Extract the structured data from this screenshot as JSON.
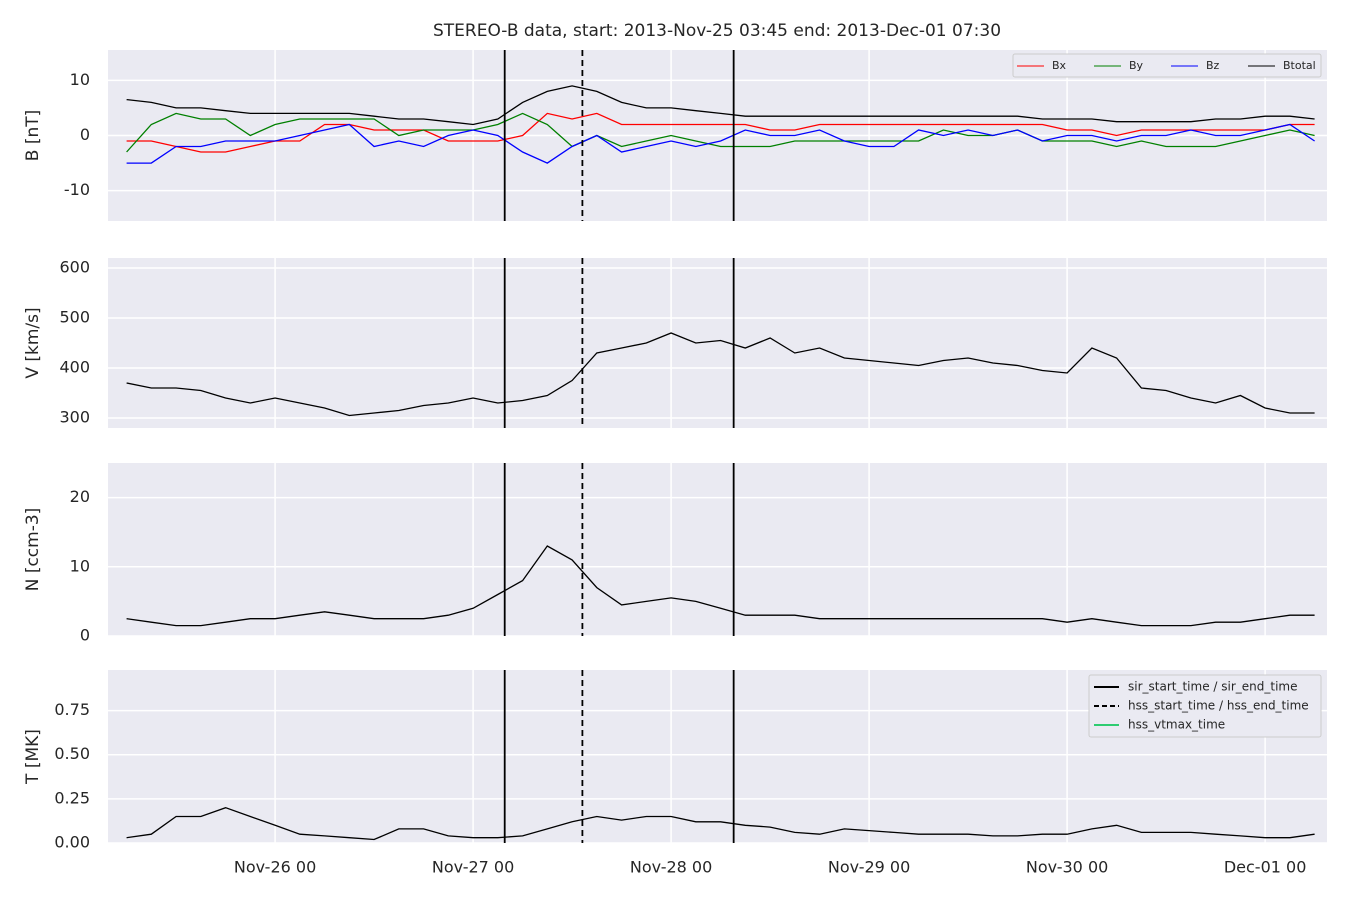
{
  "chart_data": {
    "type": "line",
    "title": "STEREO-B data, start: 2013-Nov-25 03:45  end: 2013-Dec-01 07:30",
    "xlim": [
      "2013-11-25 03:45",
      "2013-12-01 07:30"
    ],
    "xticks": [
      {
        "value": "2013-11-26 00:00",
        "label": "Nov-26 00"
      },
      {
        "value": "2013-11-27 00:00",
        "label": "Nov-27 00"
      },
      {
        "value": "2013-11-28 00:00",
        "label": "Nov-28 00"
      },
      {
        "value": "2013-11-29 00:00",
        "label": "Nov-29 00"
      },
      {
        "value": "2013-11-30 00:00",
        "label": "Nov-30 00"
      },
      {
        "value": "2013-12-01 00:00",
        "label": "Dec-01 00"
      }
    ],
    "grid": true,
    "x": [
      "2013-11-25 06:00",
      "2013-11-25 09:00",
      "2013-11-25 12:00",
      "2013-11-25 15:00",
      "2013-11-25 18:00",
      "2013-11-25 21:00",
      "2013-11-26 00:00",
      "2013-11-26 03:00",
      "2013-11-26 06:00",
      "2013-11-26 09:00",
      "2013-11-26 12:00",
      "2013-11-26 15:00",
      "2013-11-26 18:00",
      "2013-11-26 21:00",
      "2013-11-27 00:00",
      "2013-11-27 03:00",
      "2013-11-27 06:00",
      "2013-11-27 09:00",
      "2013-11-27 12:00",
      "2013-11-27 15:00",
      "2013-11-27 18:00",
      "2013-11-27 21:00",
      "2013-11-28 00:00",
      "2013-11-28 03:00",
      "2013-11-28 06:00",
      "2013-11-28 09:00",
      "2013-11-28 12:00",
      "2013-11-28 15:00",
      "2013-11-28 18:00",
      "2013-11-28 21:00",
      "2013-11-29 00:00",
      "2013-11-29 03:00",
      "2013-11-29 06:00",
      "2013-11-29 09:00",
      "2013-11-29 12:00",
      "2013-11-29 15:00",
      "2013-11-29 18:00",
      "2013-11-29 21:00",
      "2013-11-30 00:00",
      "2013-11-30 03:00",
      "2013-11-30 06:00",
      "2013-11-30 09:00",
      "2013-11-30 12:00",
      "2013-11-30 15:00",
      "2013-11-30 18:00",
      "2013-11-30 21:00",
      "2013-12-01 00:00",
      "2013-12-01 03:00",
      "2013-12-01 06:00"
    ],
    "panels": [
      {
        "ylabel": "B [nT]",
        "ylim": [
          -15.5,
          15.5
        ],
        "yticks": [
          -10,
          0,
          10
        ],
        "legend": "upper right",
        "series": [
          {
            "name": "Bx",
            "color": "#ff0000",
            "values": [
              -1,
              -1,
              -2,
              -3,
              -3,
              -2,
              -1,
              -1,
              2,
              2,
              1,
              1,
              1,
              -1,
              -1,
              -1,
              0,
              4,
              3,
              4,
              2,
              2,
              2,
              2,
              2,
              2,
              1,
              1,
              2,
              2,
              2,
              2,
              2,
              2,
              2,
              2,
              2,
              2,
              1,
              1,
              0,
              1,
              1,
              1,
              1,
              1,
              1,
              2,
              2
            ]
          },
          {
            "name": "By",
            "color": "#008000",
            "values": [
              -3,
              2,
              4,
              3,
              3,
              0,
              2,
              3,
              3,
              3,
              3,
              0,
              1,
              1,
              1,
              2,
              4,
              2,
              -2,
              0,
              -2,
              -1,
              0,
              -1,
              -2,
              -2,
              -2,
              -1,
              -1,
              -1,
              -1,
              -1,
              -1,
              1,
              0,
              0,
              1,
              -1,
              -1,
              -1,
              -2,
              -1,
              -2,
              -2,
              -2,
              -1,
              0,
              1,
              0
            ]
          },
          {
            "name": "Bz",
            "color": "#0000ff",
            "values": [
              -5,
              -5,
              -2,
              -2,
              -1,
              -1,
              -1,
              0,
              1,
              2,
              -2,
              -1,
              -2,
              0,
              1,
              0,
              -3,
              -5,
              -2,
              0,
              -3,
              -2,
              -1,
              -2,
              -1,
              1,
              0,
              0,
              1,
              -1,
              -2,
              -2,
              1,
              0,
              1,
              0,
              1,
              -1,
              0,
              0,
              -1,
              0,
              0,
              1,
              0,
              0,
              1,
              2,
              -1
            ]
          },
          {
            "name": "Btotal",
            "color": "#000000",
            "values": [
              6.5,
              6,
              5,
              5,
              4.5,
              4,
              4,
              4,
              4,
              4,
              3.5,
              3,
              3,
              2.5,
              2,
              3,
              6,
              8,
              9,
              8,
              6,
              5,
              5,
              4.5,
              4,
              3.5,
              3.5,
              3.5,
              3.5,
              3.5,
              3.5,
              3.5,
              3.5,
              3.5,
              3.5,
              3.5,
              3.5,
              3,
              3,
              3,
              2.5,
              2.5,
              2.5,
              2.5,
              3,
              3,
              3.5,
              3.5,
              3
            ]
          }
        ]
      },
      {
        "ylabel": "V [km/s]",
        "ylim": [
          280,
          620
        ],
        "yticks": [
          300,
          400,
          500,
          600
        ],
        "series": [
          {
            "color": "#000000",
            "values": [
              370,
              360,
              360,
              355,
              340,
              330,
              340,
              330,
              320,
              305,
              310,
              315,
              325,
              330,
              340,
              330,
              335,
              345,
              375,
              430,
              440,
              450,
              470,
              450,
              455,
              440,
              460,
              430,
              440,
              420,
              415,
              410,
              405,
              415,
              420,
              410,
              405,
              395,
              390,
              440,
              420,
              360,
              355,
              340,
              330,
              345,
              320,
              310,
              310
            ]
          }
        ]
      },
      {
        "ylabel": "N [ccm-3]",
        "ylim": [
          0,
          25
        ],
        "yticks": [
          0,
          10,
          20
        ],
        "series": [
          {
            "color": "#000000",
            "values": [
              2.5,
              2,
              1.5,
              1.5,
              2,
              2.5,
              2.5,
              3,
              3.5,
              3,
              2.5,
              2.5,
              2.5,
              3,
              4,
              6,
              8,
              13,
              11,
              7,
              4.5,
              5,
              5.5,
              5,
              4,
              3,
              3,
              3,
              2.5,
              2.5,
              2.5,
              2.5,
              2.5,
              2.5,
              2.5,
              2.5,
              2.5,
              2.5,
              2,
              2.5,
              2,
              1.5,
              1.5,
              1.5,
              2,
              2,
              2.5,
              3,
              3
            ]
          }
        ]
      },
      {
        "ylabel": "T [MK]",
        "ylim": [
          0,
          0.98
        ],
        "yticks": [
          {
            "value": 0,
            "label": "0.00"
          },
          {
            "value": 0.25,
            "label": "0.25"
          },
          {
            "value": 0.5,
            "label": "0.50"
          },
          {
            "value": 0.75,
            "label": "0.75"
          }
        ],
        "series": [
          {
            "color": "#000000",
            "values": [
              0.03,
              0.05,
              0.15,
              0.15,
              0.2,
              0.15,
              0.1,
              0.05,
              0.04,
              0.03,
              0.02,
              0.08,
              0.08,
              0.04,
              0.03,
              0.03,
              0.04,
              0.08,
              0.12,
              0.15,
              0.13,
              0.15,
              0.15,
              0.12,
              0.12,
              0.1,
              0.09,
              0.06,
              0.05,
              0.08,
              0.07,
              0.06,
              0.05,
              0.05,
              0.05,
              0.04,
              0.04,
              0.05,
              0.05,
              0.08,
              0.1,
              0.06,
              0.06,
              0.06,
              0.05,
              0.04,
              0.03,
              0.03,
              0.05
            ]
          }
        ]
      }
    ],
    "events_legend": "upper right",
    "events": [
      {
        "name": "sir_start_time / sir_end_time",
        "color": "#000000",
        "style": "solid",
        "times": [
          "2013-11-27 03:50",
          "2013-11-28 07:35"
        ]
      },
      {
        "name": "hss_start_time / hss_end_time",
        "color": "#000000",
        "style": "dashed",
        "times": [
          "2013-11-27 13:15"
        ]
      },
      {
        "name": "hss_vtmax_time",
        "color": "#2ecc71",
        "style": "solid",
        "times": []
      }
    ]
  }
}
